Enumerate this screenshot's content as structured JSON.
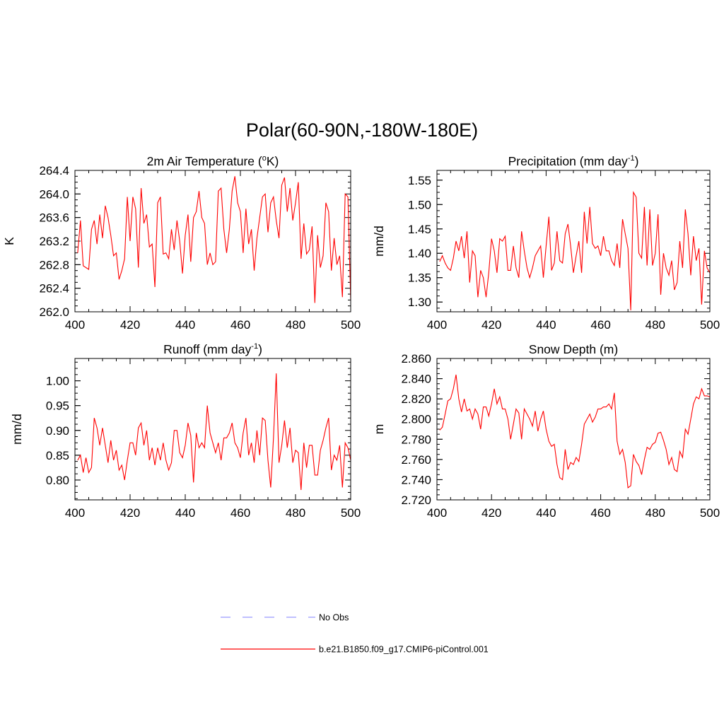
{
  "figure_title": "Polar(60-90N,-180W-180E)",
  "colors": {
    "model_line": "#ff0000",
    "obs_line": "#9999ff",
    "axis": "#000000"
  },
  "legend": {
    "obs_label": "No Obs",
    "model_label": "b.e21.B1850.f09_g17.CMIP6-piControl.001"
  },
  "chart_data": [
    {
      "type": "line",
      "title": "2m Air Temperature (oK)",
      "title_parts": [
        "2m Air Temperature (",
        "o",
        "K)"
      ],
      "title_sup_index": 1,
      "xlabel": "",
      "ylabel": "K",
      "xlim": [
        400,
        500
      ],
      "ylim": [
        262.0,
        264.4
      ],
      "xticks": [
        400,
        420,
        440,
        460,
        480,
        500
      ],
      "xtick_labels": [
        "400",
        "420",
        "440",
        "460",
        "480",
        "500"
      ],
      "yticks": [
        262.0,
        262.4,
        262.8,
        263.2,
        263.6,
        264.0,
        264.4
      ],
      "ytick_labels": [
        "262.0",
        "262.4",
        "262.8",
        "263.2",
        "263.6",
        "264.0",
        "264.4"
      ],
      "yminor_step": 0.1,
      "x_start": 401,
      "series": [
        {
          "name": "b.e21.B1850.f09_g17.CMIP6-piControl.001",
          "values": [
            263.0,
            263.55,
            262.78,
            262.75,
            262.72,
            263.4,
            263.55,
            263.15,
            263.65,
            263.25,
            263.8,
            263.6,
            263.3,
            262.95,
            263.0,
            262.55,
            262.7,
            262.9,
            263.95,
            263.2,
            263.95,
            263.75,
            262.75,
            264.1,
            263.5,
            263.65,
            263.1,
            263.15,
            262.42,
            263.85,
            263.95,
            262.98,
            263.0,
            262.9,
            263.4,
            263.05,
            263.55,
            263.2,
            262.65,
            263.3,
            263.65,
            262.85,
            263.6,
            263.7,
            264.05,
            263.6,
            263.5,
            262.8,
            263.0,
            262.8,
            262.85,
            264.05,
            264.1,
            263.4,
            263.0,
            263.4,
            264.05,
            264.3,
            263.85,
            263.7,
            263.0,
            263.75,
            263.15,
            263.4,
            262.7,
            263.25,
            263.6,
            263.95,
            264.0,
            263.35,
            263.85,
            263.95,
            263.55,
            263.25,
            264.15,
            264.28,
            263.7,
            264.1,
            263.55,
            263.85,
            264.2,
            262.9,
            263.5,
            262.98,
            263.05,
            263.45,
            262.15,
            263.3,
            262.75,
            262.95,
            263.85,
            263.7,
            262.7,
            263.25,
            262.8,
            262.95,
            262.25,
            264.0,
            263.95,
            262.2
          ]
        }
      ]
    },
    {
      "type": "line",
      "title": "Precipitation (mm day-1)",
      "title_parts": [
        "Precipitation (mm day",
        "-1",
        ")"
      ],
      "title_sup_index": 1,
      "xlabel": "",
      "ylabel": "mm/d",
      "xlim": [
        400,
        500
      ],
      "ylim": [
        1.28,
        1.57
      ],
      "xticks": [
        400,
        420,
        440,
        460,
        480,
        500
      ],
      "xtick_labels": [
        "400",
        "420",
        "440",
        "460",
        "480",
        "500"
      ],
      "yticks": [
        1.3,
        1.35,
        1.4,
        1.45,
        1.5,
        1.55
      ],
      "ytick_labels": [
        "1.30",
        "1.35",
        "1.40",
        "1.45",
        "1.50",
        "1.55"
      ],
      "yminor_step": 0.0125,
      "x_start": 401,
      "series": [
        {
          "name": "b.e21.B1850.f09_g17.CMIP6-piControl.001",
          "values": [
            1.383,
            1.395,
            1.38,
            1.37,
            1.365,
            1.39,
            1.425,
            1.405,
            1.435,
            1.39,
            1.445,
            1.34,
            1.405,
            1.395,
            1.31,
            1.365,
            1.35,
            1.31,
            1.36,
            1.43,
            1.405,
            1.36,
            1.43,
            1.425,
            1.435,
            1.365,
            1.365,
            1.415,
            1.37,
            1.35,
            1.445,
            1.405,
            1.37,
            1.35,
            1.37,
            1.395,
            1.405,
            1.415,
            1.35,
            1.415,
            1.475,
            1.365,
            1.38,
            1.445,
            1.385,
            1.38,
            1.44,
            1.46,
            1.415,
            1.36,
            1.395,
            1.425,
            1.36,
            1.485,
            1.42,
            1.495,
            1.42,
            1.41,
            1.415,
            1.395,
            1.435,
            1.405,
            1.405,
            1.385,
            1.375,
            1.42,
            1.37,
            1.47,
            1.44,
            1.41,
            1.283,
            1.525,
            1.515,
            1.4,
            1.39,
            1.495,
            1.375,
            1.49,
            1.375,
            1.4,
            1.48,
            1.315,
            1.4,
            1.37,
            1.355,
            1.385,
            1.325,
            1.34,
            1.425,
            1.37,
            1.49,
            1.44,
            1.355,
            1.435,
            1.385,
            1.41,
            1.295,
            1.405,
            1.37,
            1.36
          ]
        }
      ]
    },
    {
      "type": "line",
      "title": "Runoff (mm day-1)",
      "title_parts": [
        "Runoff (mm day",
        "-1",
        ")"
      ],
      "title_sup_index": 1,
      "xlabel": "",
      "ylabel": "mm/d",
      "xlim": [
        400,
        500
      ],
      "ylim": [
        0.76,
        1.045
      ],
      "xticks": [
        400,
        420,
        440,
        460,
        480,
        500
      ],
      "xtick_labels": [
        "400",
        "420",
        "440",
        "460",
        "480",
        "500"
      ],
      "yticks": [
        0.8,
        0.85,
        0.9,
        0.95,
        1.0
      ],
      "ytick_labels": [
        "0.80",
        "0.85",
        "0.90",
        "0.95",
        "1.00"
      ],
      "yminor_step": 0.0125,
      "x_start": 401,
      "series": [
        {
          "name": "b.e21.B1850.f09_g17.CMIP6-piControl.001",
          "values": [
            0.84,
            0.85,
            0.815,
            0.845,
            0.815,
            0.825,
            0.925,
            0.905,
            0.87,
            0.905,
            0.87,
            0.835,
            0.88,
            0.84,
            0.86,
            0.82,
            0.83,
            0.8,
            0.84,
            0.875,
            0.875,
            0.85,
            0.905,
            0.915,
            0.87,
            0.9,
            0.84,
            0.865,
            0.83,
            0.865,
            0.84,
            0.875,
            0.84,
            0.82,
            0.835,
            0.9,
            0.9,
            0.855,
            0.845,
            0.87,
            0.915,
            0.89,
            0.795,
            0.895,
            0.865,
            0.875,
            0.865,
            0.95,
            0.895,
            0.875,
            0.855,
            0.875,
            0.84,
            0.885,
            0.885,
            0.895,
            0.915,
            0.875,
            0.865,
            0.845,
            0.895,
            0.925,
            0.85,
            0.875,
            0.835,
            0.9,
            0.85,
            0.925,
            0.92,
            0.84,
            0.785,
            0.885,
            1.015,
            0.835,
            0.87,
            0.92,
            0.865,
            0.905,
            0.835,
            0.86,
            0.855,
            0.78,
            0.875,
            0.825,
            0.87,
            0.87,
            0.81,
            0.81,
            0.86,
            0.88,
            0.905,
            0.925,
            0.82,
            0.85,
            0.84,
            0.87,
            0.785,
            0.875,
            0.865,
            0.84
          ]
        }
      ]
    },
    {
      "type": "line",
      "title": "Snow Depth (m)",
      "title_parts": [
        "Snow Depth (m)"
      ],
      "title_sup_index": -1,
      "xlabel": "",
      "ylabel": "m",
      "xlim": [
        400,
        500
      ],
      "ylim": [
        2.72,
        2.86
      ],
      "xticks": [
        400,
        420,
        440,
        460,
        480,
        500
      ],
      "xtick_labels": [
        "400",
        "420",
        "440",
        "460",
        "480",
        "500"
      ],
      "yticks": [
        2.72,
        2.74,
        2.76,
        2.78,
        2.8,
        2.82,
        2.84,
        2.86
      ],
      "ytick_labels": [
        "2.720",
        "2.740",
        "2.760",
        "2.780",
        "2.800",
        "2.820",
        "2.840",
        "2.860"
      ],
      "yminor_step": 0.005,
      "x_start": 401,
      "series": [
        {
          "name": "b.e21.B1850.f09_g17.CMIP6-piControl.001",
          "values": [
            2.789,
            2.792,
            2.805,
            2.818,
            2.82,
            2.83,
            2.844,
            2.82,
            2.807,
            2.82,
            2.808,
            2.81,
            2.8,
            2.81,
            2.805,
            2.79,
            2.812,
            2.812,
            2.803,
            2.815,
            2.83,
            2.815,
            2.822,
            2.81,
            2.81,
            2.8,
            2.78,
            2.795,
            2.81,
            2.806,
            2.78,
            2.81,
            2.805,
            2.8,
            2.793,
            2.808,
            2.788,
            2.8,
            2.808,
            2.79,
            2.778,
            2.773,
            2.775,
            2.755,
            2.742,
            2.74,
            2.77,
            2.75,
            2.757,
            2.755,
            2.762,
            2.758,
            2.775,
            2.795,
            2.8,
            2.805,
            2.797,
            2.802,
            2.81,
            2.81,
            2.812,
            2.812,
            2.815,
            2.81,
            2.826,
            2.778,
            2.765,
            2.77,
            2.757,
            2.732,
            2.734,
            2.765,
            2.758,
            2.754,
            2.745,
            2.76,
            2.772,
            2.77,
            2.775,
            2.777,
            2.786,
            2.787,
            2.779,
            2.77,
            2.755,
            2.762,
            2.75,
            2.748,
            2.768,
            2.762,
            2.79,
            2.785,
            2.8,
            2.815,
            2.822,
            2.82,
            2.83,
            2.823,
            2.823,
            2.822
          ]
        }
      ]
    }
  ]
}
